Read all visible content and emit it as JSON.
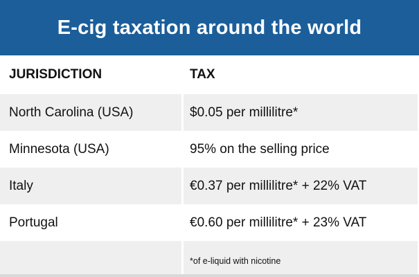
{
  "title": "E-cig taxation around the world",
  "headers": {
    "jurisdiction": "JURISDICTION",
    "tax": "TAX"
  },
  "rows": [
    {
      "jurisdiction": "North Carolina (USA)",
      "tax": "$0.05 per millilitre*"
    },
    {
      "jurisdiction": "Minnesota (USA)",
      "tax": "95% on the selling price"
    },
    {
      "jurisdiction": "Italy",
      "tax": "€0.37 per millilitre* + 22% VAT"
    },
    {
      "jurisdiction": "Portugal",
      "tax": "€0.60 per millilitre* + 23% VAT"
    }
  ],
  "footnote": "*of e-liquid with nicotine",
  "colors": {
    "title_bg": "#1b5e9a",
    "row_shade": "#efefef"
  }
}
